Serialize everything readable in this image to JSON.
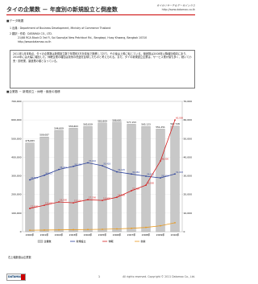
{
  "header": {
    "title": "タイの企業数 － 年度別の新規設立と倒産数",
    "brand": "タイのリサーチ＆データバンクス",
    "url": "http://www.datamax.co.th"
  },
  "overview": {
    "heading": "■データ概要",
    "lines": [
      "1 出典：Department of Business Development, Ministry of Commerce Thailand",
      "2 翻訳・作成：DATAMAX CO., LTD.",
      "21/88 RCA Block D 3rd Fl, Soi Soonvijai New Petchburi Rd., Bangkapi, Huay Khwang, Bangkok 10310",
      "http://www.datamax.co.th"
    ]
  },
  "summary": "2011年1月末時点、タイの企業数は新規設立数で年間約3万社前後で推移しており、その後は上昇に転じている。倒産数は2008年以降増加傾向にあり、2010年には大幅に増加した。休眠企業の増加は景気の低迷を反映したものと考えられる。また、タイの新規設立企業は、サービス業が最も多く、続いて小売・卸売業、製造業の順となっている。",
  "chart_data": {
    "type": "bar",
    "title": "■企業数 － 新規設立・休眠・倒産の推移",
    "categories": [
      "2000年",
      "2001年",
      "2002年",
      "2003年",
      "2004年",
      "2005年",
      "2006年",
      "2007年",
      "2008年",
      "2009年",
      "2010年"
    ],
    "series": [
      {
        "name": "企業数",
        "type": "bar",
        "color": "#c8c8c8",
        "values": [
          476683,
          509087,
          544609,
          555803,
          565839,
          583809,
          588681,
          577153,
          565123,
          551251,
          567728
        ],
        "value_labels": [
          "476,683",
          "509,087",
          "544,609",
          "555,803",
          "565,839",
          "583,809",
          "588,681",
          "577,153",
          "565,123",
          "551,251",
          "567,728"
        ]
      },
      {
        "name": "新規設立",
        "type": "line",
        "axis": "y2",
        "color": "#2a3f9a",
        "values": [
          27871,
          30312,
          33421,
          35102,
          37010,
          35418,
          32125,
          30984,
          29811,
          28912,
          31003
        ],
        "value_labels": [
          "27,871",
          "30,312",
          "33,421",
          "35,102",
          "37,010",
          "35,418",
          "32,125",
          "30,984",
          "29,811",
          "28,912",
          "31,003"
        ]
      },
      {
        "name": "休眠",
        "type": "line",
        "axis": "y2",
        "color": "#d42020",
        "values": [
          12500,
          14200,
          16000,
          15500,
          17200,
          16800,
          18500,
          22000,
          25000,
          38000,
          60000
        ],
        "value_labels": [
          "12,500",
          "14,200",
          "16,000",
          "15,500",
          "17,200",
          "16,800",
          "18,500",
          "22,000",
          "25,000",
          "38,000",
          "60,000"
        ]
      },
      {
        "name": "倒産",
        "type": "line",
        "axis": "y2",
        "color": "#e89a20",
        "values": [
          800,
          900,
          1000,
          1100,
          1200,
          1300,
          1500,
          1800,
          2300,
          3200,
          4800
        ]
      }
    ],
    "ylim": [
      0,
      700000
    ],
    "yticks": [
      0,
      {
        "value": 100000,
        "label": "100,000"
      },
      {
        "value": 200000,
        "label": "200,000"
      },
      {
        "value": 300000,
        "label": "300,000"
      },
      {
        "value": 400000,
        "label": "400,000"
      },
      {
        "value": 500000,
        "label": "500,000"
      },
      {
        "value": 600000,
        "label": "600,000"
      },
      {
        "value": 700000,
        "label": "700,000"
      }
    ],
    "y2lim": [
      0,
      70000
    ],
    "y2ticks": [
      0,
      {
        "value": 10000,
        "label": "10,000"
      },
      {
        "value": 20000,
        "label": "20,000"
      },
      {
        "value": 30000,
        "label": "30,000"
      },
      {
        "value": 40000,
        "label": "40,000"
      },
      {
        "value": 50000,
        "label": "50,000"
      },
      {
        "value": 60000,
        "label": "60,000"
      },
      {
        "value": 70000,
        "label": "70,000"
      }
    ],
    "grid": true
  },
  "note": "右上軸数値は企業数",
  "footer": {
    "logo": "DATAMAX",
    "page": "1",
    "copyright": "All rights reserved. Copyright © 2011 Datamax Co., Ltd."
  }
}
